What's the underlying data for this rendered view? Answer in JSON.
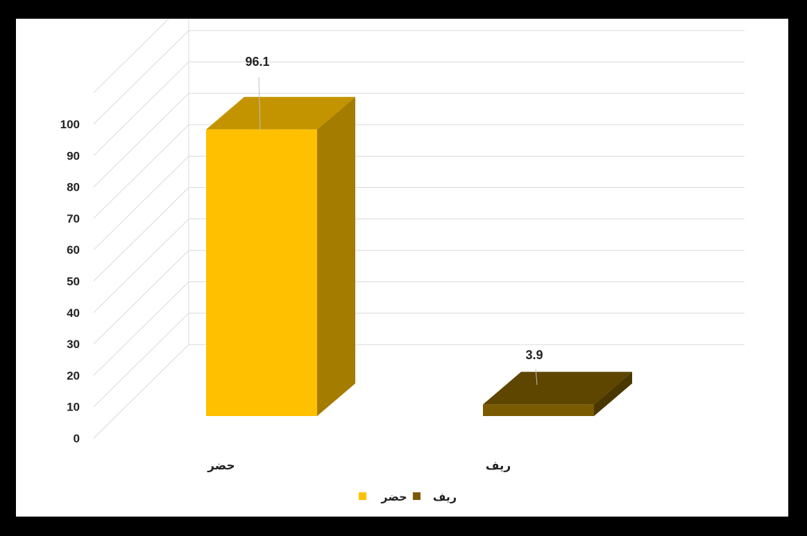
{
  "chart_data": {
    "type": "bar",
    "style": "3d-column",
    "categories": [
      "حضر",
      "ريف"
    ],
    "values": [
      96.1,
      3.9
    ],
    "data_labels": [
      "96.1",
      "3.9"
    ],
    "y_ticks": [
      "0",
      "10",
      "20",
      "30",
      "40",
      "50",
      "60",
      "70",
      "80",
      "90",
      "100"
    ],
    "ylim": [
      0,
      100
    ],
    "grid": true,
    "legend": {
      "position": "bottom",
      "entries": [
        {
          "label": "ريف",
          "color": "#7a5a00"
        },
        {
          "label": "حضر",
          "color": "#ffc000"
        }
      ]
    },
    "colors": {
      "حضر": {
        "front": "#ffc000",
        "top": "#c49400",
        "side": "#a47c00"
      },
      "ريف": {
        "front": "#7a5a00",
        "top": "#5e4500",
        "side": "#4a3700"
      }
    },
    "frame_color": "#000000",
    "grid_color": "#d9d9d9"
  }
}
